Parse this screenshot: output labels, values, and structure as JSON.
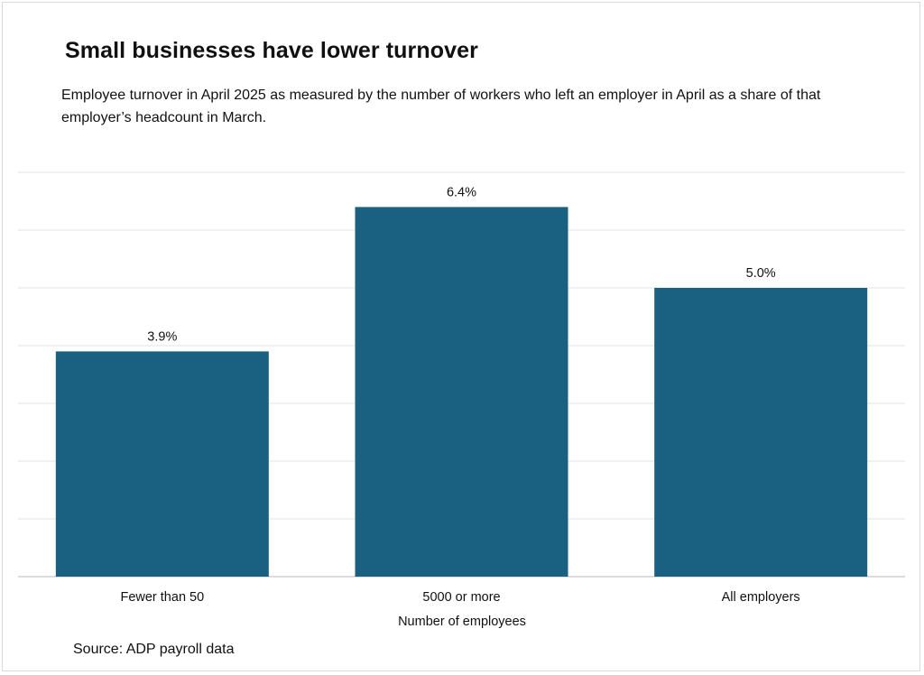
{
  "title": "Small businesses have lower turnover",
  "subtitle": "Employee turnover in April 2025 as measured by the number of workers who left an employer in April as a share  of that employer’s headcount in March.",
  "source": "Source: ADP payroll data",
  "colors": {
    "bar": "#1a6080",
    "grid": "#e3e3e3",
    "axis": "#c8c8c8",
    "text": "#111111"
  },
  "chart_data": {
    "type": "bar",
    "categories": [
      "Fewer than 50",
      "5000 or more",
      "All employers"
    ],
    "values": [
      3.9,
      6.4,
      5.0
    ],
    "data_labels": [
      "3.9%",
      "6.4%",
      "5.0%"
    ],
    "xlabel": "Number of employees",
    "ylabel": "",
    "ylim": [
      0,
      7
    ],
    "grid": true,
    "legend": "none"
  }
}
